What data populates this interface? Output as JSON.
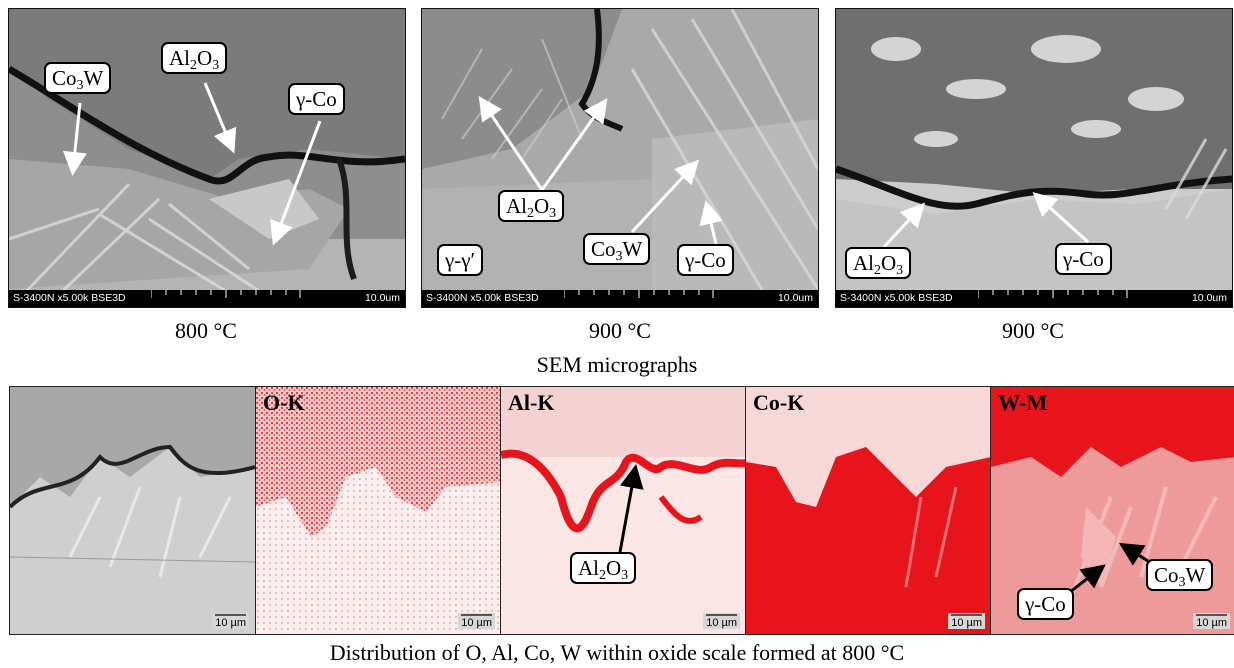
{
  "sem_panels": [
    {
      "instrument": "S-3400N x5.00k BSE3D",
      "scale": "10.0um",
      "caption": "800 °C"
    },
    {
      "instrument": "S-3400N x5.00k BSE3D",
      "scale": "10.0um",
      "caption": "900 °C"
    },
    {
      "instrument": "S-3400N x5.00k BSE3D",
      "scale": "10.0um",
      "caption": "900 °C"
    }
  ],
  "sem_title": "SEM micrographs",
  "labels": {
    "co3w": "Co",
    "co3w_sub": "3",
    "co3w_tail": "W",
    "al2o3": "Al",
    "al2o3_sub": "2",
    "al2o3_tail": "O",
    "al2o3_sub2": "3",
    "gamma_co": "γ-Co",
    "gamma_gamma_prime": "γ-γ′"
  },
  "maps": [
    {
      "element": "",
      "scale": "10 µm"
    },
    {
      "element": "O-K",
      "scale": "10 µm"
    },
    {
      "element": "Al-K",
      "scale": "10 µm"
    },
    {
      "element": "Co-K",
      "scale": "10 µm"
    },
    {
      "element": "W-M",
      "scale": "10 µm"
    }
  ],
  "bottom_caption": "Distribution of O, Al, Co, W within oxide scale formed at 800 °C",
  "colors": {
    "map_red": "#e8141c",
    "label_border": "#000000"
  }
}
